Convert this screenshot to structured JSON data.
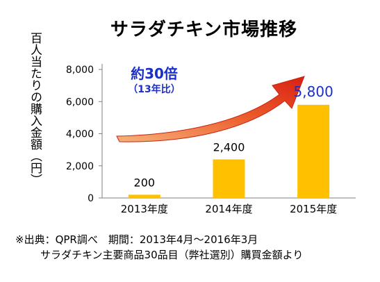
{
  "title": "サラダチキン市場推移",
  "ylabel": "百人当たりの購入金額（円）",
  "annotation": {
    "main": "約30倍",
    "sub": "（13年比）",
    "color": "#1a2fc9",
    "arrow_color": "#e3341b"
  },
  "source": {
    "line1": "※出典：QPR調べ　期間：2013年4月〜2016年3月",
    "line2": "サラダチキン主要商品30品目（弊社選別）購買金額より"
  },
  "chart_data": {
    "type": "bar",
    "categories": [
      "2013年度",
      "2014年度",
      "2015年度"
    ],
    "values": [
      200,
      2400,
      5800
    ],
    "value_labels": [
      "200",
      "2,400",
      "5,800"
    ],
    "highlight_index": 2,
    "highlight_color": "#1a2fc9",
    "bar_color": "#ffc000",
    "ylim": [
      0,
      8000
    ],
    "yticks": [
      0,
      2000,
      4000,
      6000,
      8000
    ],
    "ytick_labels": [
      "0",
      "2,000",
      "4,000",
      "6,000",
      "8,000"
    ],
    "grid": false
  }
}
